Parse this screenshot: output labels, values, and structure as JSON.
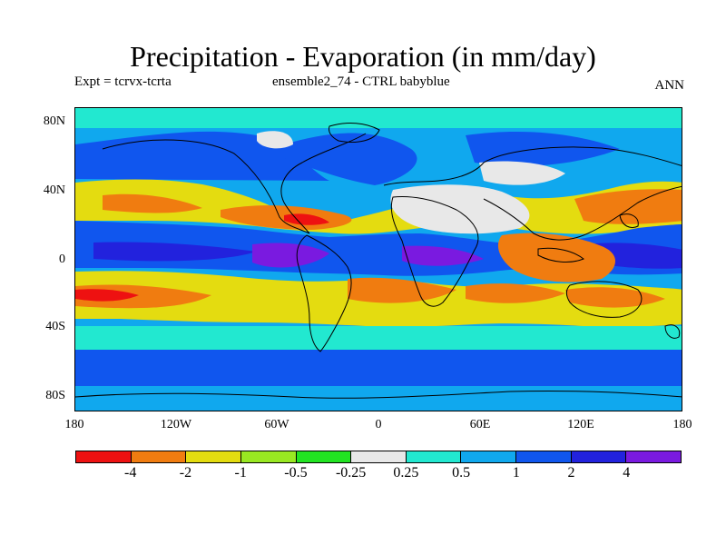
{
  "title": "Precipitation - Evaporation (in mm/day)",
  "subtitle_left": "Expt = tcrvx-tcrta",
  "subtitle_center": "ensemble2_74 - CTRL babyblue",
  "subtitle_right": "ANN",
  "lat_ticks": [
    "80N",
    "40N",
    "0",
    "40S",
    "80S"
  ],
  "lon_ticks": [
    "180",
    "120W",
    "60W",
    "0",
    "60E",
    "120E",
    "180"
  ],
  "legend": {
    "colors": [
      "#ee1111",
      "#f07c10",
      "#e4dc10",
      "#99e822",
      "#22e422",
      "#e8e8e8",
      "#22e8d0",
      "#10a8ee",
      "#1056ee",
      "#2222dd",
      "#7a1ae0"
    ],
    "labels": [
      "-4",
      "-2",
      "-1",
      "-0.5",
      "-0.25",
      "0.25",
      "0.5",
      "1",
      "2",
      "4"
    ]
  }
}
